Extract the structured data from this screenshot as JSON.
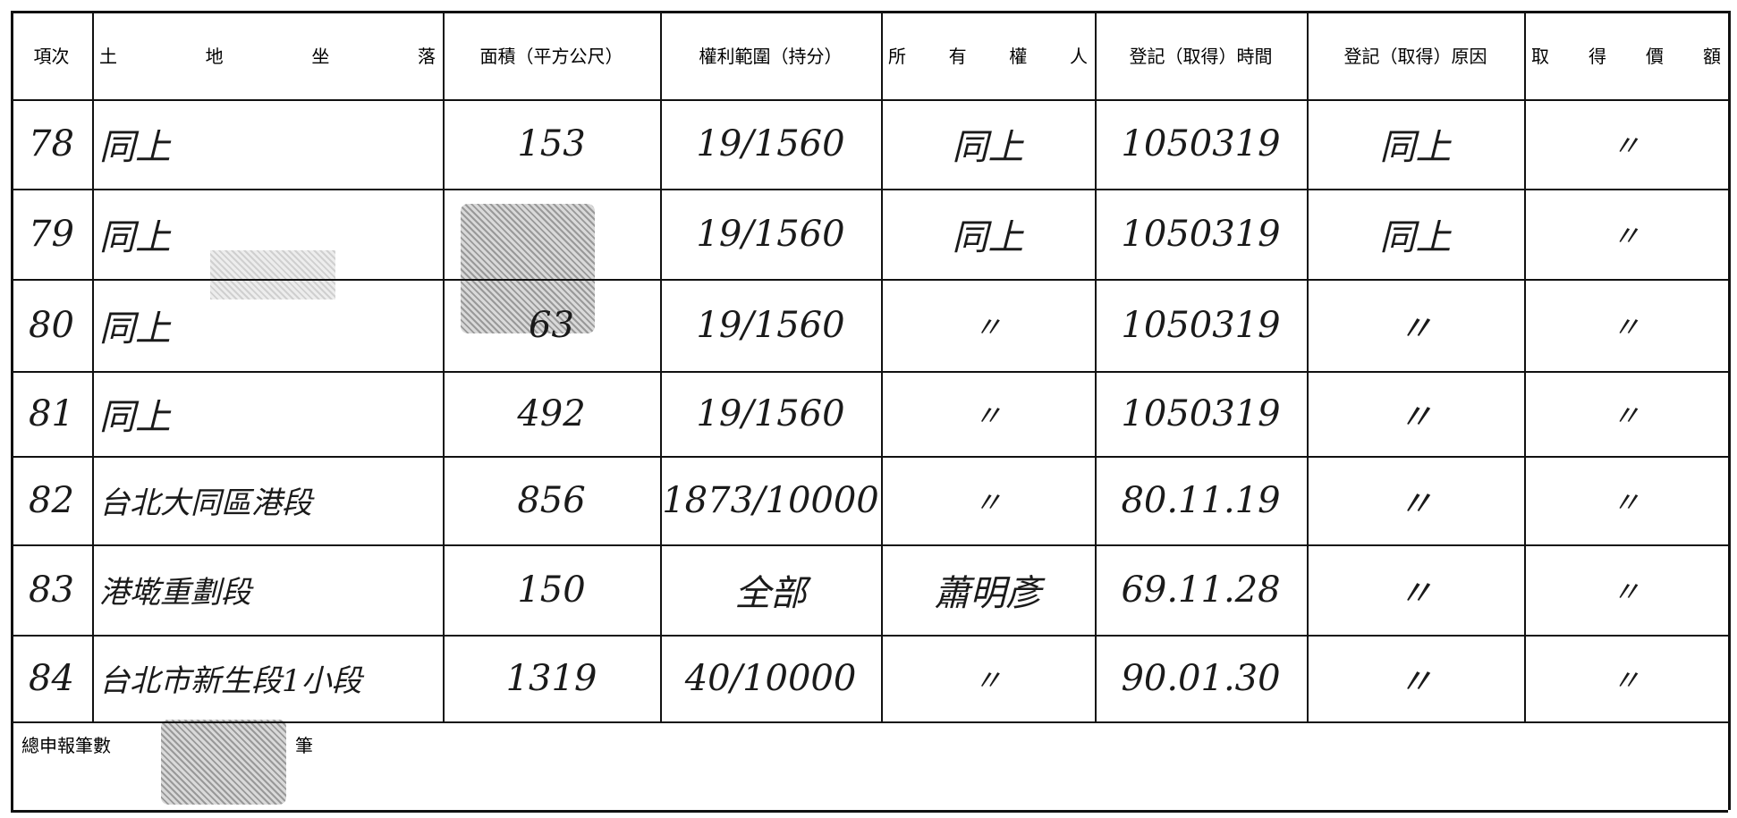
{
  "header": [
    "項次",
    "土地坐落",
    "面積（平方公尺）",
    "權利範圍（持分）",
    "所有權人",
    "登記（取得）時間",
    "登記（取得）原因",
    "取得價額"
  ],
  "rows": [
    {
      "no": "78",
      "location": "同上",
      "area": "153",
      "share": "19/1560",
      "owner": "同上",
      "date": "1050319",
      "reason": "同上",
      "price": "〃"
    },
    {
      "no": "79",
      "location": "同上",
      "share": "19/1560",
      "owner": "同上",
      "date": "1050319",
      "reason": "同上",
      "price": "〃"
    },
    {
      "no": "80",
      "location": "同上",
      "area": "63",
      "share": "19/1560",
      "owner": "〃",
      "date": "1050319",
      "reason": "〃",
      "price": "〃"
    },
    {
      "no": "81",
      "location": "同上",
      "area": "492",
      "share": "19/1560",
      "owner": "〃",
      "date": "1050319",
      "reason": "〃",
      "price": "〃"
    },
    {
      "no": "82",
      "location": "台北大同區港段",
      "area": "856",
      "share": "1873/10000",
      "owner": "〃",
      "date": "80.11.19",
      "reason": "〃",
      "price": "〃"
    },
    {
      "no": "83",
      "location": "港墘重劃段",
      "area": "150",
      "share": "全部",
      "owner": "蕭明彥",
      "date": "69.11.28",
      "reason": "〃",
      "price": "〃"
    },
    {
      "no": "84",
      "location": "台北市新生段1小段",
      "area": "1319",
      "share": "40/10000",
      "owner": "〃",
      "date": "90.01.30",
      "reason": "〃",
      "price": "〃"
    }
  ],
  "footer": {
    "label": "總申報筆數",
    "unit": "筆"
  }
}
